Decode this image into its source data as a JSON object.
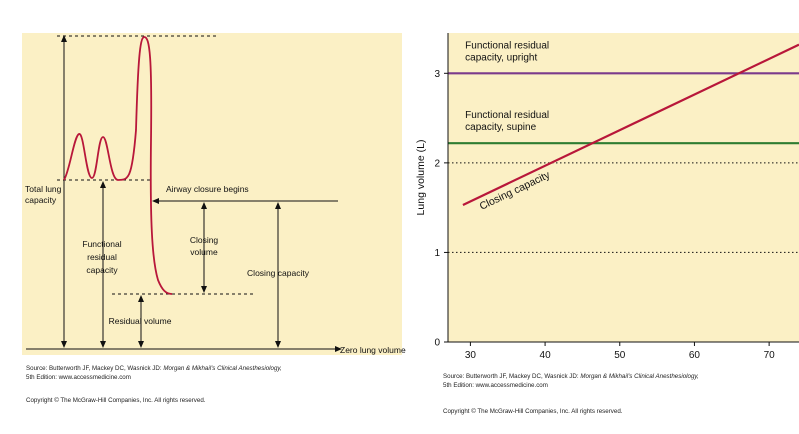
{
  "colors": {
    "background": "#fbf0c5",
    "curve": "#b8173a",
    "upright": "#7b3a8c",
    "supine": "#2e7d32",
    "ink": "#111111"
  },
  "left_figure": {
    "labels": {
      "total_lung_capacity": [
        "Total lung",
        "capacity"
      ],
      "airway_closure": "Airway closure begins",
      "frc": [
        "Functional",
        "residual",
        "capacity"
      ],
      "closing_volume": [
        "Closing",
        "volume"
      ],
      "closing_capacity": "Closing capacity",
      "residual_volume": "Residual volume",
      "zero_lung_volume": "Zero lung volume"
    },
    "source": {
      "prefix": "Source: Butterworth JF, Mackey DC, Wasnick JD: ",
      "title": "Morgan & Mikhail's Clinical Anesthesiology,",
      "edition": "5th Edition: www.accessmedicine.com"
    },
    "copyright": "Copyright © The McGraw-Hill Companies, Inc. All rights reserved."
  },
  "chart_data": {
    "type": "line",
    "xlabel": "",
    "ylabel": "Lung volume (L)",
    "xlim": [
      27,
      74
    ],
    "ylim": [
      0,
      3.45
    ],
    "x_ticks": [
      30,
      40,
      50,
      60,
      70
    ],
    "y_ticks": [
      0,
      1,
      2,
      3
    ],
    "grid": "dotted horizontal at 1, 2, 3",
    "series": [
      {
        "name": "Functional residual capacity, upright",
        "name_lines": [
          "Functional residual",
          "capacity, upright"
        ],
        "color": "#7b3a8c",
        "x": [
          27,
          74
        ],
        "y": [
          3.0,
          3.0
        ]
      },
      {
        "name": "Functional residual capacity, supine",
        "name_lines": [
          "Functional residual",
          "capacity, supine"
        ],
        "color": "#2e7d32",
        "x": [
          27,
          74
        ],
        "y": [
          2.22,
          2.22
        ]
      },
      {
        "name": "Closing capacity",
        "name_lines": [
          "Closing capacity"
        ],
        "color": "#b8173a",
        "x": [
          29,
          74
        ],
        "y": [
          1.53,
          3.32
        ]
      }
    ]
  },
  "right_figure": {
    "source": {
      "prefix": "Source: Butterworth JF, Mackey DC, Wasnick JD: ",
      "title": "Morgan & Mikhail's Clinical Anesthesiology,",
      "edition": "5th Edition: www.accessmedicine.com"
    },
    "copyright": "Copyright © The McGraw-Hill Companies, Inc. All rights reserved."
  }
}
